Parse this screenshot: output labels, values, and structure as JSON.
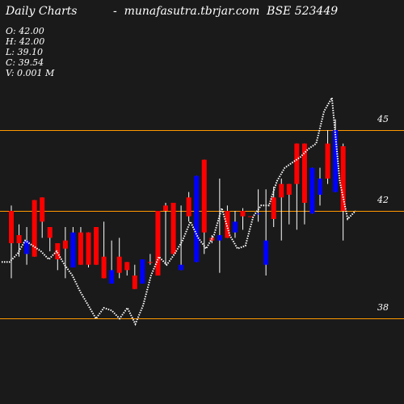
{
  "header": {
    "title": "Daily Charts",
    "sep": "-",
    "site": "munafasutra.tbrjar.com",
    "symbol": "BSE 523449"
  },
  "ohlc": {
    "open": "O: 42.00",
    "high": "H: 42.00",
    "low": "L: 39.10",
    "close": "C: 39.54",
    "volume": "V: 0.001 M"
  },
  "colors": {
    "background": "#1a1a1a",
    "up": "#0000ff",
    "down": "#ff0000",
    "wick": "#ffffff",
    "level_line": "#ff9900",
    "ma_line": "#ffffff"
  },
  "chart_data": {
    "type": "candlestick",
    "y_scale": "price",
    "y_ticks": [
      {
        "value": 45,
        "label": "45"
      },
      {
        "value": 42,
        "label": "42"
      },
      {
        "value": 38,
        "label": "38"
      }
    ],
    "levels": [
      45,
      42,
      38
    ],
    "candles": [
      {
        "o": 42.0,
        "h": 42.2,
        "l": 39.5,
        "c": 40.8,
        "dir": "down"
      },
      {
        "o": 40.8,
        "h": 41.5,
        "l": 40.3,
        "c": 41.1,
        "dir": "down"
      },
      {
        "o": 40.9,
        "h": 41.4,
        "l": 40.0,
        "c": 40.4,
        "dir": "up"
      },
      {
        "o": 42.4,
        "h": 42.4,
        "l": 40.3,
        "c": 40.3,
        "dir": "down"
      },
      {
        "o": 42.5,
        "h": 42.5,
        "l": 41.0,
        "c": 41.6,
        "dir": "down"
      },
      {
        "o": 41.4,
        "h": 41.4,
        "l": 40.5,
        "c": 41.0,
        "dir": "down"
      },
      {
        "o": 40.8,
        "h": 40.8,
        "l": 39.8,
        "c": 40.2,
        "dir": "down"
      },
      {
        "o": 40.6,
        "h": 41.4,
        "l": 39.5,
        "c": 40.9,
        "dir": "down"
      },
      {
        "o": 39.9,
        "h": 41.4,
        "l": 39.9,
        "c": 41.2,
        "dir": "up"
      },
      {
        "o": 41.2,
        "h": 41.4,
        "l": 40.0,
        "c": 40.0,
        "dir": "down"
      },
      {
        "o": 41.2,
        "h": 41.2,
        "l": 39.9,
        "c": 40.0,
        "dir": "down"
      },
      {
        "o": 41.4,
        "h": 41.4,
        "l": 40.0,
        "c": 40.0,
        "dir": "down"
      },
      {
        "o": 40.3,
        "h": 41.6,
        "l": 39.5,
        "c": 39.5,
        "dir": "down"
      },
      {
        "o": 39.3,
        "h": 40.9,
        "l": 39.3,
        "c": 39.8,
        "dir": "up"
      },
      {
        "o": 40.3,
        "h": 41.0,
        "l": 39.5,
        "c": 39.7,
        "dir": "down"
      },
      {
        "o": 40.1,
        "h": 40.1,
        "l": 39.6,
        "c": 39.8,
        "dir": "down"
      },
      {
        "o": 39.6,
        "h": 40.0,
        "l": 39.1,
        "c": 39.1,
        "dir": "down"
      },
      {
        "o": 39.3,
        "h": 40.2,
        "l": 39.3,
        "c": 40.2,
        "dir": "up"
      },
      {
        "o": 40.1,
        "h": 40.4,
        "l": 40.0,
        "c": 40.1,
        "dir": "down"
      },
      {
        "o": 42.0,
        "h": 42.0,
        "l": 39.6,
        "c": 39.6,
        "dir": "down"
      },
      {
        "o": 42.2,
        "h": 42.3,
        "l": 40.0,
        "c": 42.0,
        "dir": "down"
      },
      {
        "o": 42.3,
        "h": 42.3,
        "l": 40.4,
        "c": 40.4,
        "dir": "down"
      },
      {
        "o": 39.8,
        "h": 42.2,
        "l": 39.8,
        "c": 40.0,
        "dir": "up"
      },
      {
        "o": 42.5,
        "h": 42.7,
        "l": 41.6,
        "c": 41.8,
        "dir": "down"
      },
      {
        "o": 43.3,
        "h": 43.3,
        "l": 40.1,
        "c": 40.1,
        "dir": "up"
      },
      {
        "o": 43.9,
        "h": 43.9,
        "l": 40.4,
        "c": 41.2,
        "dir": "down"
      },
      {
        "o": 41.0,
        "h": 41.1,
        "l": 40.8,
        "c": 40.9,
        "dir": "down"
      },
      {
        "o": 41.1,
        "h": 43.2,
        "l": 39.7,
        "c": 40.9,
        "dir": "up"
      },
      {
        "o": 42.0,
        "h": 42.2,
        "l": 41.0,
        "c": 41.0,
        "dir": "down"
      },
      {
        "o": 41.6,
        "h": 42.0,
        "l": 41.0,
        "c": 41.2,
        "dir": "up"
      },
      {
        "o": 42.0,
        "h": 42.1,
        "l": 41.3,
        "c": 41.8,
        "dir": "down"
      },
      {
        "o": 41.8,
        "h": 41.8,
        "l": 41.8,
        "c": 41.8,
        "dir": "down"
      },
      {
        "o": 41.9,
        "h": 42.8,
        "l": 41.6,
        "c": 41.9,
        "dir": "up"
      },
      {
        "o": 40.9,
        "h": 42.8,
        "l": 39.6,
        "c": 40.0,
        "dir": "up"
      },
      {
        "o": 42.5,
        "h": 42.9,
        "l": 41.4,
        "c": 41.7,
        "dir": "down"
      },
      {
        "o": 43.0,
        "h": 43.2,
        "l": 40.9,
        "c": 42.5,
        "dir": "down"
      },
      {
        "o": 43.0,
        "h": 43.0,
        "l": 41.5,
        "c": 42.6,
        "dir": "down"
      },
      {
        "o": 44.5,
        "h": 44.5,
        "l": 41.3,
        "c": 43.0,
        "dir": "down"
      },
      {
        "o": 44.5,
        "h": 44.5,
        "l": 41.5,
        "c": 42.3,
        "dir": "down"
      },
      {
        "o": 43.6,
        "h": 43.6,
        "l": 41.9,
        "c": 41.9,
        "dir": "up"
      },
      {
        "o": 43.2,
        "h": 43.6,
        "l": 42.2,
        "c": 42.6,
        "dir": "up"
      },
      {
        "o": 44.5,
        "h": 45.0,
        "l": 43.0,
        "c": 43.2,
        "dir": "down"
      },
      {
        "o": 45.0,
        "h": 45.4,
        "l": 42.7,
        "c": 42.7,
        "dir": "up"
      },
      {
        "o": 44.4,
        "h": 44.5,
        "l": 40.9,
        "c": 42.0,
        "dir": "down"
      }
    ],
    "ma": [
      40.1,
      40.1,
      40.4,
      40.9,
      40.7,
      40.5,
      40.2,
      40.5,
      40.0,
      39.6,
      39.0,
      38.5,
      38.0,
      38.4,
      38.3,
      38.0,
      38.4,
      37.8,
      38.5,
      39.6,
      40.3,
      40.0,
      40.4,
      40.9,
      41.6,
      41.0,
      40.6,
      41.1,
      42.1,
      41.1,
      40.6,
      40.7,
      41.8,
      42.2,
      42.2,
      43.1,
      43.6,
      43.8,
      44.0,
      44.3,
      44.5,
      45.7,
      46.2,
      43.1,
      41.7,
      42.0
    ],
    "title": "",
    "xlabel": "",
    "ylabel": ""
  }
}
